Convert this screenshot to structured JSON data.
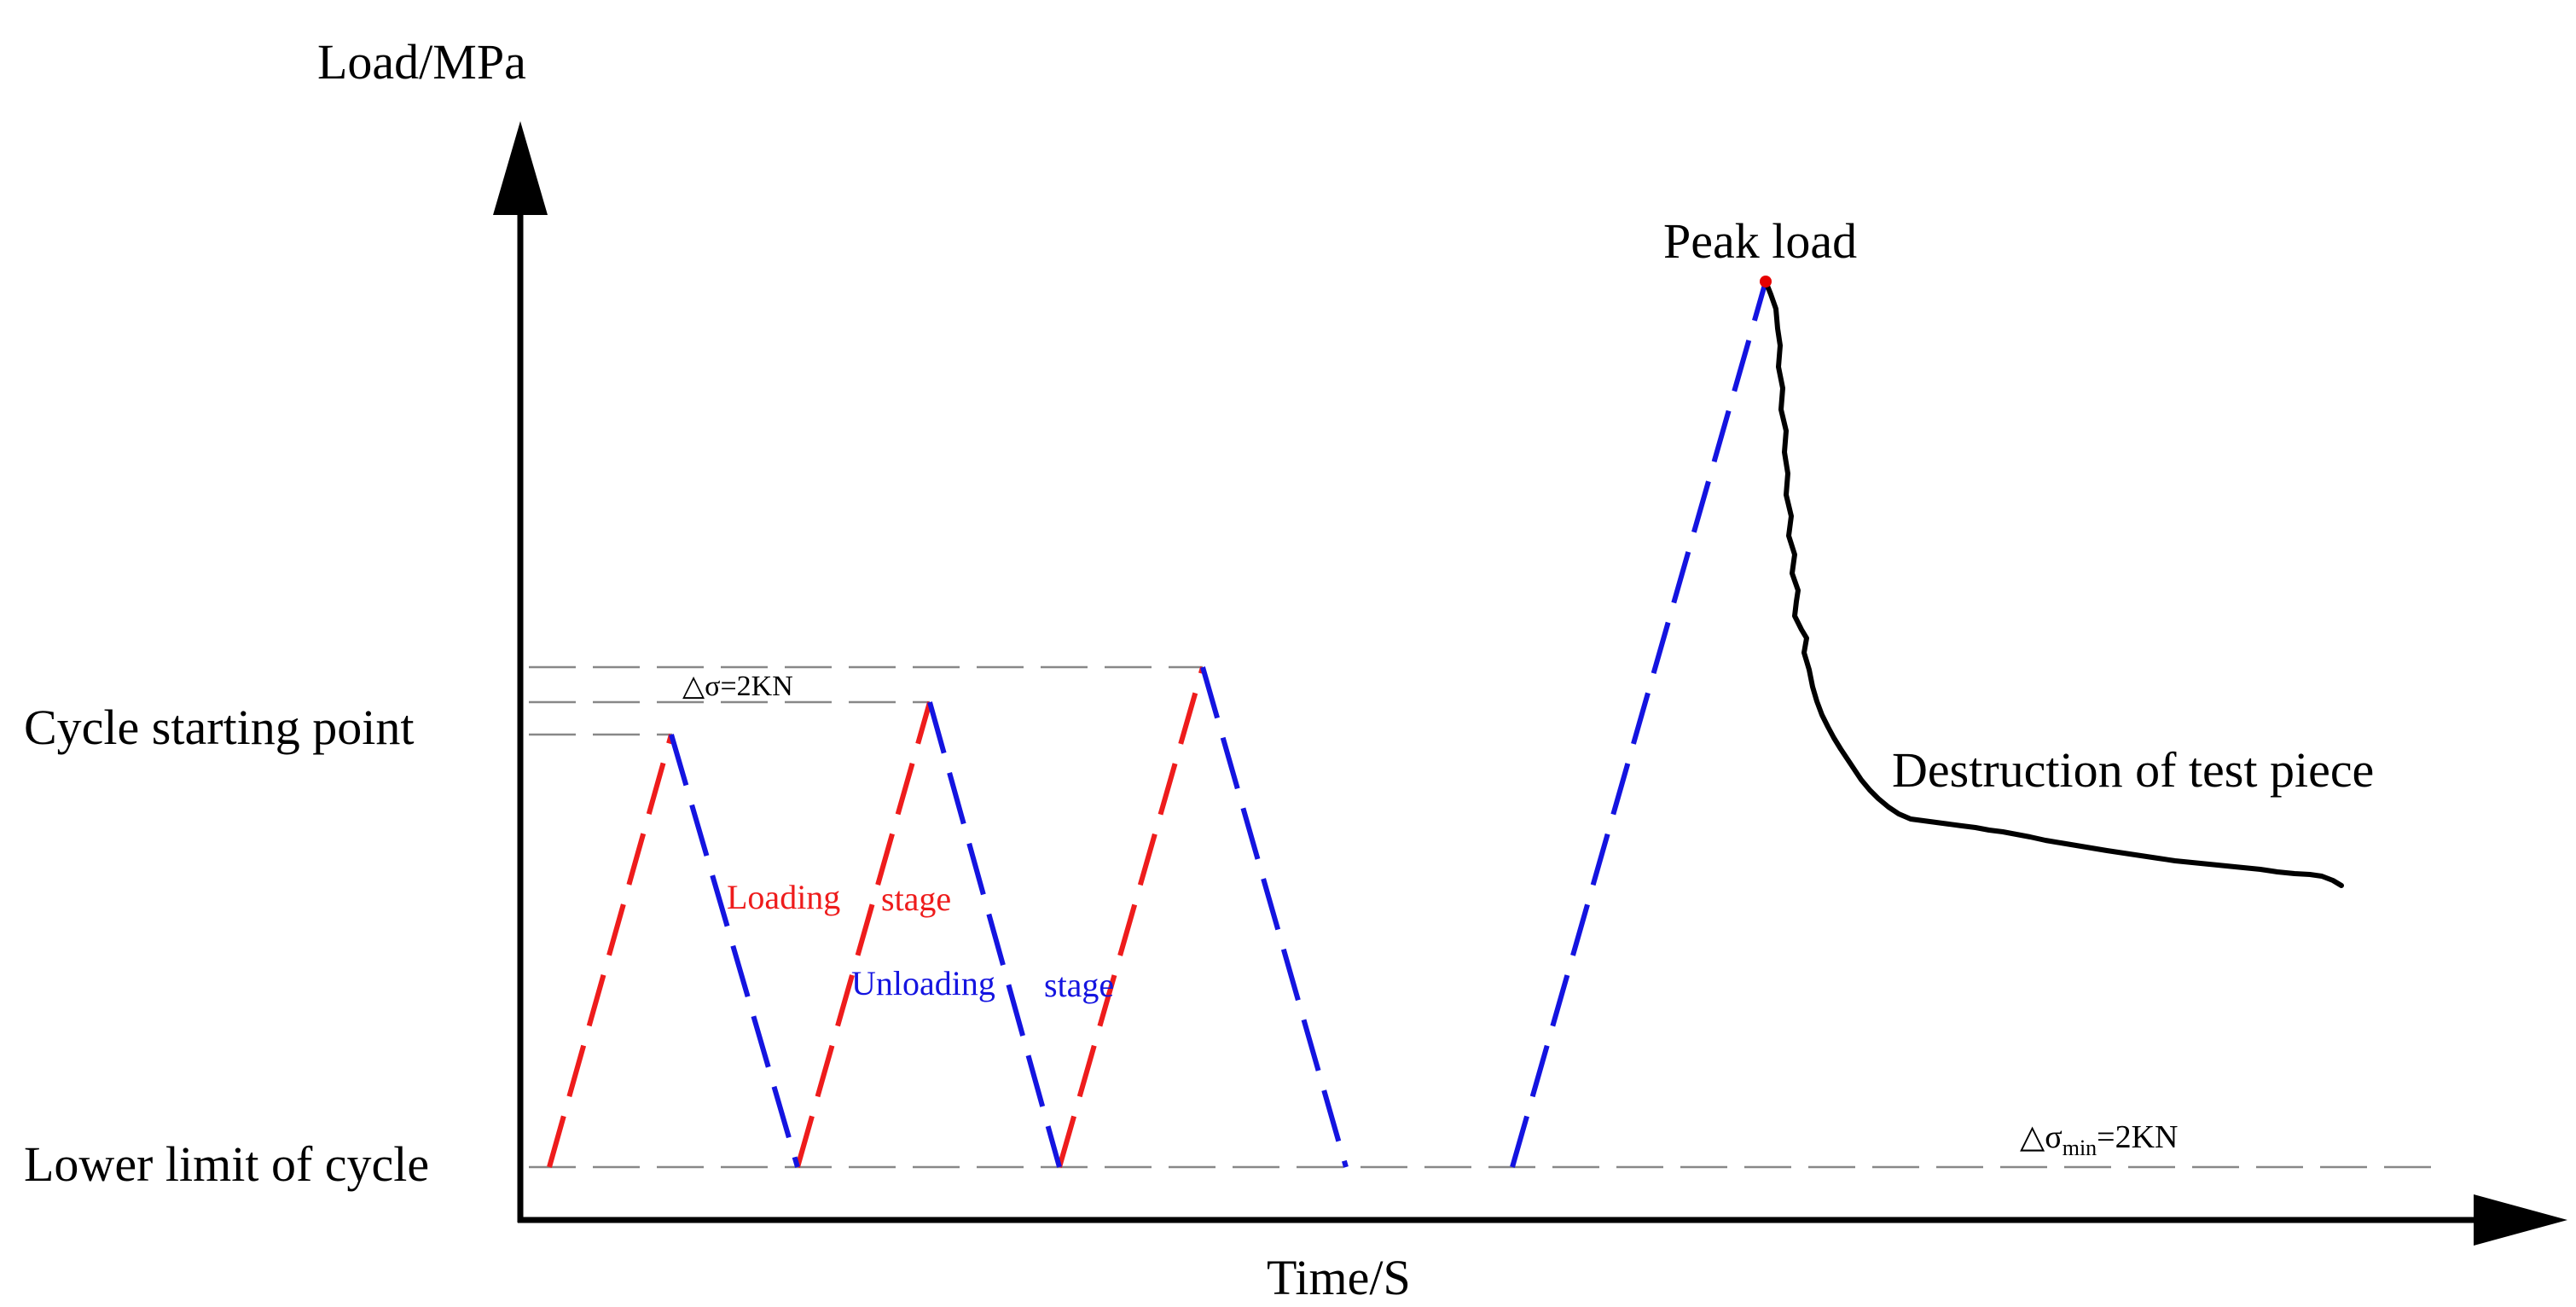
{
  "axes": {
    "y_label": "Load/MPa",
    "x_label": "Time/S"
  },
  "levels": {
    "cycle_start": "Cycle starting point",
    "lower_limit": "Lower limit of cycle"
  },
  "annotations": {
    "delta_step_prefix": "△σ=",
    "delta_step_value": "2KN",
    "delta_min_prefix": "△σ",
    "delta_min_sub": "min",
    "delta_min_value": "=2KN",
    "loading": "Loading",
    "loading_stage": "stage",
    "unloading": "Unloading",
    "unloading_stage": "stage",
    "peak": "Peak load",
    "destruction": "Destruction of test piece"
  },
  "colors": {
    "loading": "#ee1c1c",
    "unloading": "#1414e0",
    "guide": "#888888",
    "axis": "#000000",
    "peak_point": "#e60000"
  }
}
